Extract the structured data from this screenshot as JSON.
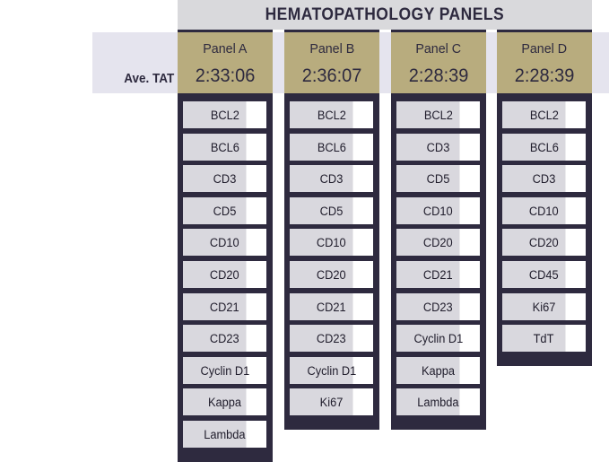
{
  "title": "HEMATOPATHOLOGY PANELS",
  "tat_label": "Ave. TAT",
  "panels": [
    {
      "name": "Panel A",
      "tat": "2:33:06",
      "markers": [
        "BCL2",
        "BCL6",
        "CD3",
        "CD5",
        "CD10",
        "CD20",
        "CD21",
        "CD23",
        "Cyclin D1",
        "Kappa",
        "Lambda"
      ]
    },
    {
      "name": "Panel B",
      "tat": "2:36:07",
      "markers": [
        "BCL2",
        "BCL6",
        "CD3",
        "CD5",
        "CD10",
        "CD20",
        "CD21",
        "CD23",
        "Cyclin D1",
        "Ki67"
      ]
    },
    {
      "name": "Panel C",
      "tat": "2:28:39",
      "markers": [
        "BCL2",
        "CD3",
        "CD5",
        "CD10",
        "CD20",
        "CD21",
        "CD23",
        "Cyclin D1",
        "Kappa",
        "Lambda"
      ]
    },
    {
      "name": "Panel D",
      "tat": "2:28:39",
      "markers": [
        "BCL2",
        "BCL6",
        "CD3",
        "CD10",
        "CD20",
        "CD45",
        "Ki67",
        "TdT"
      ]
    }
  ],
  "colors": {
    "header_bg": "#d9d9dc",
    "band_bg": "#e5e4ee",
    "panel_head": "#b8ac7e",
    "panel_body": "#2e2a3f",
    "marker_bg": "#d9d8de",
    "text_dark": "#2e2a3f"
  }
}
